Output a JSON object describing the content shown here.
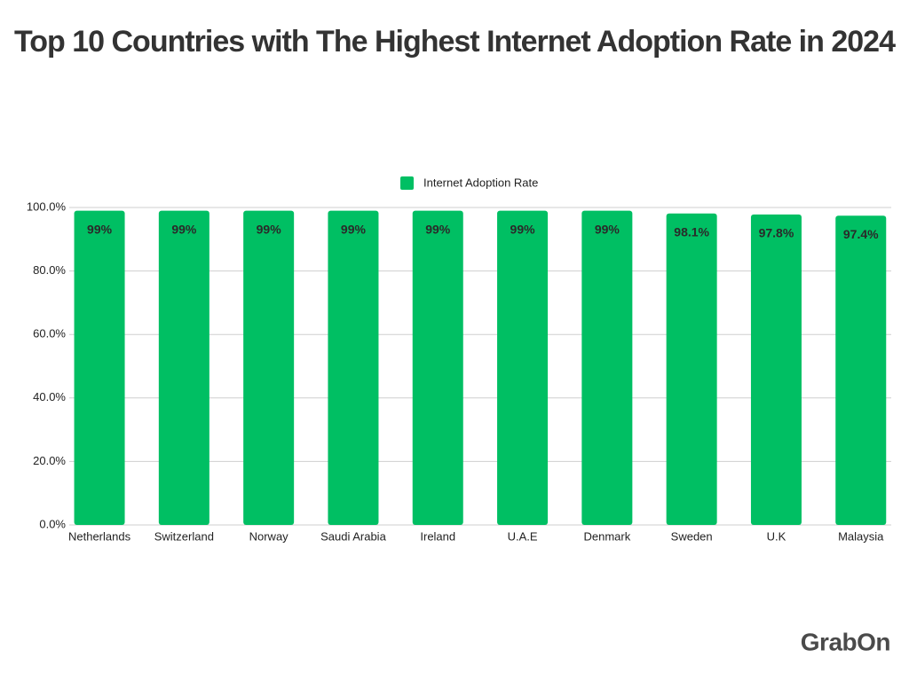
{
  "chart_data": {
    "type": "bar",
    "title": "Top 10 Countries with The Highest Internet Adoption Rate in 2024",
    "categories": [
      "Netherlands",
      "Switzerland",
      "Norway",
      "Saudi Arabia",
      "Ireland",
      "U.A.E",
      "Denmark",
      "Sweden",
      "U.K",
      "Malaysia"
    ],
    "series": [
      {
        "name": "Internet Adoption Rate",
        "color": "#00bf63",
        "values": [
          99,
          99,
          99,
          99,
          99,
          99,
          99,
          98.1,
          97.8,
          97.4
        ],
        "value_labels": [
          "99%",
          "99%",
          "99%",
          "99%",
          "99%",
          "99%",
          "99%",
          "98.1%",
          "97.8%",
          "97.4%"
        ]
      }
    ],
    "ylim": [
      0,
      100
    ],
    "yticks": [
      {
        "value": 0,
        "label": "0.0%"
      },
      {
        "value": 20,
        "label": "20.0%"
      },
      {
        "value": 40,
        "label": "40.0%"
      },
      {
        "value": 60,
        "label": "60.0%"
      },
      {
        "value": 80,
        "label": "80.0%"
      },
      {
        "value": 100,
        "label": "100.0%"
      }
    ],
    "grid": true,
    "legend": "top",
    "logo": "GrabOn"
  }
}
